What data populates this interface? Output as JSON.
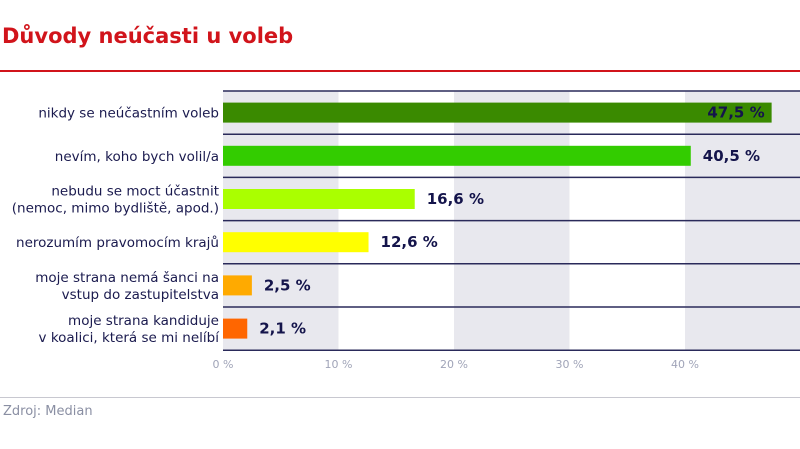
{
  "chart_data": {
    "type": "bar",
    "orientation": "horizontal",
    "title": "Důvody neúčasti u voleb",
    "categories": [
      [
        "nikdy se neúčastním voleb"
      ],
      [
        "nevím, koho bych volil/a"
      ],
      [
        "nebudu se moct účastnit",
        "(nemoc, mimo bydliště, apod.)"
      ],
      [
        "nerozumím pravomocím krajů"
      ],
      [
        "moje strana nemá šanci na",
        "vstup do zastupitelstva"
      ],
      [
        "moje strana kandiduje",
        "v koalici, která se mi nelíbí"
      ]
    ],
    "values": [
      47.5,
      40.5,
      16.6,
      12.6,
      2.5,
      2.1
    ],
    "value_labels": [
      "47,5 %",
      "40,5 %",
      "16,6 %",
      "12,6 %",
      "2,5 %",
      "2,1 %"
    ],
    "colors": [
      "#3a8a00",
      "#33cc00",
      "#aaff00",
      "#ffff00",
      "#ffaa00",
      "#ff6600"
    ],
    "xlim": [
      0,
      50
    ],
    "xticks": [
      0,
      10,
      20,
      30,
      40
    ],
    "xtick_labels": [
      "0 %",
      "10 %",
      "20 %",
      "30 %",
      "40 %"
    ],
    "grid": "alternating vertical bands",
    "xlabel": "",
    "ylabel": ""
  },
  "source": "Zdroj: Median"
}
